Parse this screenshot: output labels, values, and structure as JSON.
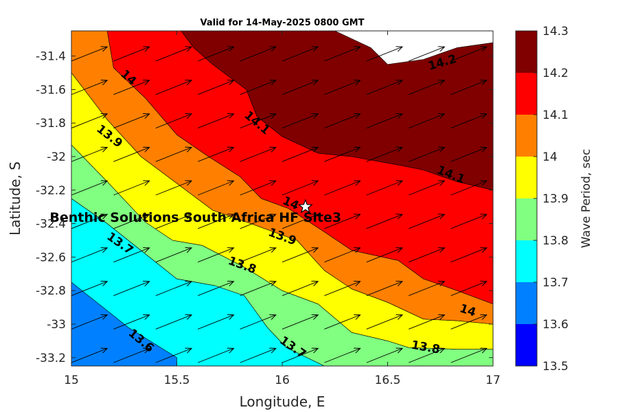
{
  "chart_data": {
    "type": "contour",
    "title": "Valid for 14-May-2025 0800 GMT",
    "xlabel": "Longitude, E",
    "ylabel": "Latitude, S",
    "colorbar_label": "Wave Period, sec",
    "xlim": [
      15,
      17
    ],
    "ylim": [
      -33.25,
      -31.25
    ],
    "x_ticks": [
      15,
      15.5,
      16,
      16.5,
      17
    ],
    "y_ticks": [
      -31.4,
      -31.6,
      -31.8,
      -32,
      -32.2,
      -32.4,
      -32.6,
      -32.8,
      -33,
      -33.2
    ],
    "clim": [
      13.5,
      14.3
    ],
    "levels": [
      {
        "from": 13.5,
        "to": 13.6,
        "color": "#0000ff"
      },
      {
        "from": 13.6,
        "to": 13.7,
        "color": "#0080ff"
      },
      {
        "from": 13.7,
        "to": 13.8,
        "color": "#00ffff"
      },
      {
        "from": 13.8,
        "to": 13.9,
        "color": "#80ff80"
      },
      {
        "from": 13.9,
        "to": 14.0,
        "color": "#ffff00"
      },
      {
        "from": 14.0,
        "to": 14.1,
        "color": "#ff8000"
      },
      {
        "from": 14.1,
        "to": 14.2,
        "color": "#ff0000"
      },
      {
        "from": 14.2,
        "to": 14.3,
        "color": "#800000"
      }
    ],
    "colorbar_ticks": [
      13.5,
      13.6,
      13.7,
      13.8,
      13.9,
      14,
      14.1,
      14.2,
      14.3
    ],
    "regions": [
      {
        "level": 13.5,
        "points": [
          [
            15,
            -33.25
          ],
          [
            15.5,
            -33.25
          ],
          [
            15.5,
            -33.2
          ],
          [
            15.27,
            -33.02
          ],
          [
            15,
            -32.75
          ]
        ]
      },
      {
        "level": 13.6,
        "points": [
          [
            15,
            -33.25
          ],
          [
            17,
            -33.25
          ],
          [
            17,
            -32.0
          ],
          [
            15,
            -31.25
          ]
        ],
        "note": "base below higher bands"
      },
      {
        "level": 13.7,
        "points": [
          [
            15,
            -32.75
          ],
          [
            15.27,
            -33.02
          ],
          [
            15.5,
            -33.2
          ],
          [
            15.5,
            -33.25
          ],
          [
            16.2,
            -33.25
          ],
          [
            16.02,
            -33.14
          ],
          [
            15.93,
            -33.02
          ],
          [
            15.82,
            -32.83
          ],
          [
            15.68,
            -32.77
          ],
          [
            15.5,
            -32.73
          ],
          [
            15.33,
            -32.56
          ],
          [
            15.17,
            -32.4
          ],
          [
            15,
            -32.25
          ]
        ]
      },
      {
        "level": 13.8,
        "points": [
          [
            15,
            -32.25
          ],
          [
            15.17,
            -32.4
          ],
          [
            15.33,
            -32.56
          ],
          [
            15.5,
            -32.73
          ],
          [
            15.68,
            -32.77
          ],
          [
            15.82,
            -32.83
          ],
          [
            15.93,
            -33.02
          ],
          [
            16.02,
            -33.14
          ],
          [
            16.2,
            -33.25
          ],
          [
            17,
            -33.25
          ],
          [
            17,
            -33.15
          ],
          [
            16.83,
            -33.15
          ],
          [
            16.6,
            -33.14
          ],
          [
            16.5,
            -33.1
          ],
          [
            16.33,
            -33.05
          ],
          [
            16.17,
            -32.88
          ],
          [
            16,
            -32.8
          ],
          [
            15.82,
            -32.66
          ],
          [
            15.62,
            -32.53
          ],
          [
            15.48,
            -32.5
          ],
          [
            15.35,
            -32.39
          ],
          [
            15.17,
            -32.15
          ],
          [
            15,
            -31.93
          ]
        ]
      },
      {
        "level": 13.9,
        "points": [
          [
            15,
            -31.93
          ],
          [
            15.17,
            -32.15
          ],
          [
            15.35,
            -32.39
          ],
          [
            15.48,
            -32.5
          ],
          [
            15.62,
            -32.53
          ],
          [
            15.82,
            -32.66
          ],
          [
            16,
            -32.8
          ],
          [
            16.17,
            -32.88
          ],
          [
            16.33,
            -33.05
          ],
          [
            16.5,
            -33.1
          ],
          [
            16.6,
            -33.14
          ],
          [
            16.83,
            -33.15
          ],
          [
            17,
            -33.15
          ],
          [
            17,
            -33.0
          ],
          [
            16.83,
            -32.98
          ],
          [
            16.67,
            -32.97
          ],
          [
            16.5,
            -32.87
          ],
          [
            16.33,
            -32.79
          ],
          [
            16.2,
            -32.68
          ],
          [
            16.07,
            -32.5
          ],
          [
            15.83,
            -32.39
          ],
          [
            15.67,
            -32.32
          ],
          [
            15.5,
            -32.16
          ],
          [
            15.33,
            -32.0
          ],
          [
            15.17,
            -31.78
          ],
          [
            15,
            -31.5
          ]
        ]
      },
      {
        "level": 14.0,
        "points": [
          [
            15,
            -31.5
          ],
          [
            15.17,
            -31.78
          ],
          [
            15.33,
            -32.0
          ],
          [
            15.5,
            -32.16
          ],
          [
            15.67,
            -32.32
          ],
          [
            15.83,
            -32.39
          ],
          [
            16.07,
            -32.5
          ],
          [
            16.2,
            -32.68
          ],
          [
            16.33,
            -32.79
          ],
          [
            16.5,
            -32.87
          ],
          [
            16.67,
            -32.97
          ],
          [
            16.83,
            -32.98
          ],
          [
            17,
            -33.0
          ],
          [
            17,
            -32.88
          ],
          [
            16.83,
            -32.8
          ],
          [
            16.67,
            -32.73
          ],
          [
            16.55,
            -32.62
          ],
          [
            16.33,
            -32.56
          ],
          [
            16.2,
            -32.45
          ],
          [
            16.03,
            -32.31
          ],
          [
            15.9,
            -32.25
          ],
          [
            15.8,
            -32.12
          ],
          [
            15.65,
            -32.0
          ],
          [
            15.5,
            -31.87
          ],
          [
            15.35,
            -31.65
          ],
          [
            15.2,
            -31.47
          ],
          [
            15.17,
            -31.25
          ],
          [
            15,
            -31.25
          ]
        ]
      },
      {
        "level": 14.1,
        "points": [
          [
            15.17,
            -31.25
          ],
          [
            15.2,
            -31.47
          ],
          [
            15.35,
            -31.65
          ],
          [
            15.5,
            -31.87
          ],
          [
            15.65,
            -32.0
          ],
          [
            15.8,
            -32.12
          ],
          [
            15.9,
            -32.25
          ],
          [
            16.03,
            -32.31
          ],
          [
            16.2,
            -32.45
          ],
          [
            16.33,
            -32.56
          ],
          [
            16.55,
            -32.62
          ],
          [
            16.67,
            -32.73
          ],
          [
            16.83,
            -32.8
          ],
          [
            17,
            -32.88
          ],
          [
            17,
            -32.2
          ],
          [
            16.83,
            -32.15
          ],
          [
            16.67,
            -32.08
          ],
          [
            16.55,
            -32.05
          ],
          [
            16.33,
            -32.0
          ],
          [
            16.17,
            -31.98
          ],
          [
            16.0,
            -31.88
          ],
          [
            15.88,
            -31.76
          ],
          [
            15.83,
            -31.6
          ],
          [
            15.67,
            -31.45
          ],
          [
            15.58,
            -31.35
          ],
          [
            15.52,
            -31.25
          ]
        ]
      },
      {
        "level": 14.2,
        "points": [
          [
            15.52,
            -31.25
          ],
          [
            15.58,
            -31.35
          ],
          [
            15.67,
            -31.45
          ],
          [
            15.83,
            -31.6
          ],
          [
            15.88,
            -31.76
          ],
          [
            16.0,
            -31.88
          ],
          [
            16.17,
            -31.98
          ],
          [
            16.33,
            -32.0
          ],
          [
            16.55,
            -32.05
          ],
          [
            16.67,
            -32.08
          ],
          [
            16.83,
            -32.15
          ],
          [
            17,
            -32.2
          ],
          [
            17,
            -31.25
          ]
        ]
      },
      {
        "level": 14.3,
        "points": [
          [
            16.25,
            -31.25
          ],
          [
            16.42,
            -31.35
          ],
          [
            16.5,
            -31.45
          ],
          [
            16.67,
            -31.42
          ],
          [
            16.83,
            -31.35
          ],
          [
            17,
            -31.32
          ],
          [
            17,
            -31.25
          ]
        ]
      }
    ],
    "contour_labels": [
      {
        "text": "14.2",
        "x": 16.76,
        "y": -31.44,
        "angle": -16
      },
      {
        "text": "14",
        "x": 15.27,
        "y": -31.53,
        "angle": 42
      },
      {
        "text": "14.1",
        "x": 15.88,
        "y": -31.8,
        "angle": 40
      },
      {
        "text": "13.9",
        "x": 15.18,
        "y": -31.88,
        "angle": 38
      },
      {
        "text": "14.1",
        "x": 16.8,
        "y": -32.11,
        "angle": 22
      },
      {
        "text": "14",
        "x": 16.04,
        "y": -32.28,
        "angle": 24
      },
      {
        "text": "13.9",
        "x": 16.0,
        "y": -32.48,
        "angle": 20
      },
      {
        "text": "13.7",
        "x": 15.23,
        "y": -32.52,
        "angle": 35
      },
      {
        "text": "13.8",
        "x": 15.81,
        "y": -32.65,
        "angle": 20
      },
      {
        "text": "14",
        "x": 16.88,
        "y": -32.92,
        "angle": 18
      },
      {
        "text": "13.6",
        "x": 15.33,
        "y": -33.1,
        "angle": 40
      },
      {
        "text": "13.7",
        "x": 16.05,
        "y": -33.14,
        "angle": 35
      },
      {
        "text": "13.8",
        "x": 16.68,
        "y": -33.14,
        "angle": 10
      }
    ],
    "site": {
      "name": "Benthic Solutions South Africa HF Site3",
      "x": 16.11,
      "y": -32.3
    },
    "vectors": {
      "direction_dx": 0.17,
      "direction_dy": 0.085,
      "lon": [
        15.0,
        15.2,
        15.4,
        15.6,
        15.8,
        16.0,
        16.2,
        16.4,
        16.6,
        16.8
      ],
      "lat": [
        -31.43,
        -31.63,
        -31.83,
        -32.03,
        -32.23,
        -32.43,
        -32.63,
        -32.83,
        -33.03,
        -33.23
      ]
    }
  }
}
